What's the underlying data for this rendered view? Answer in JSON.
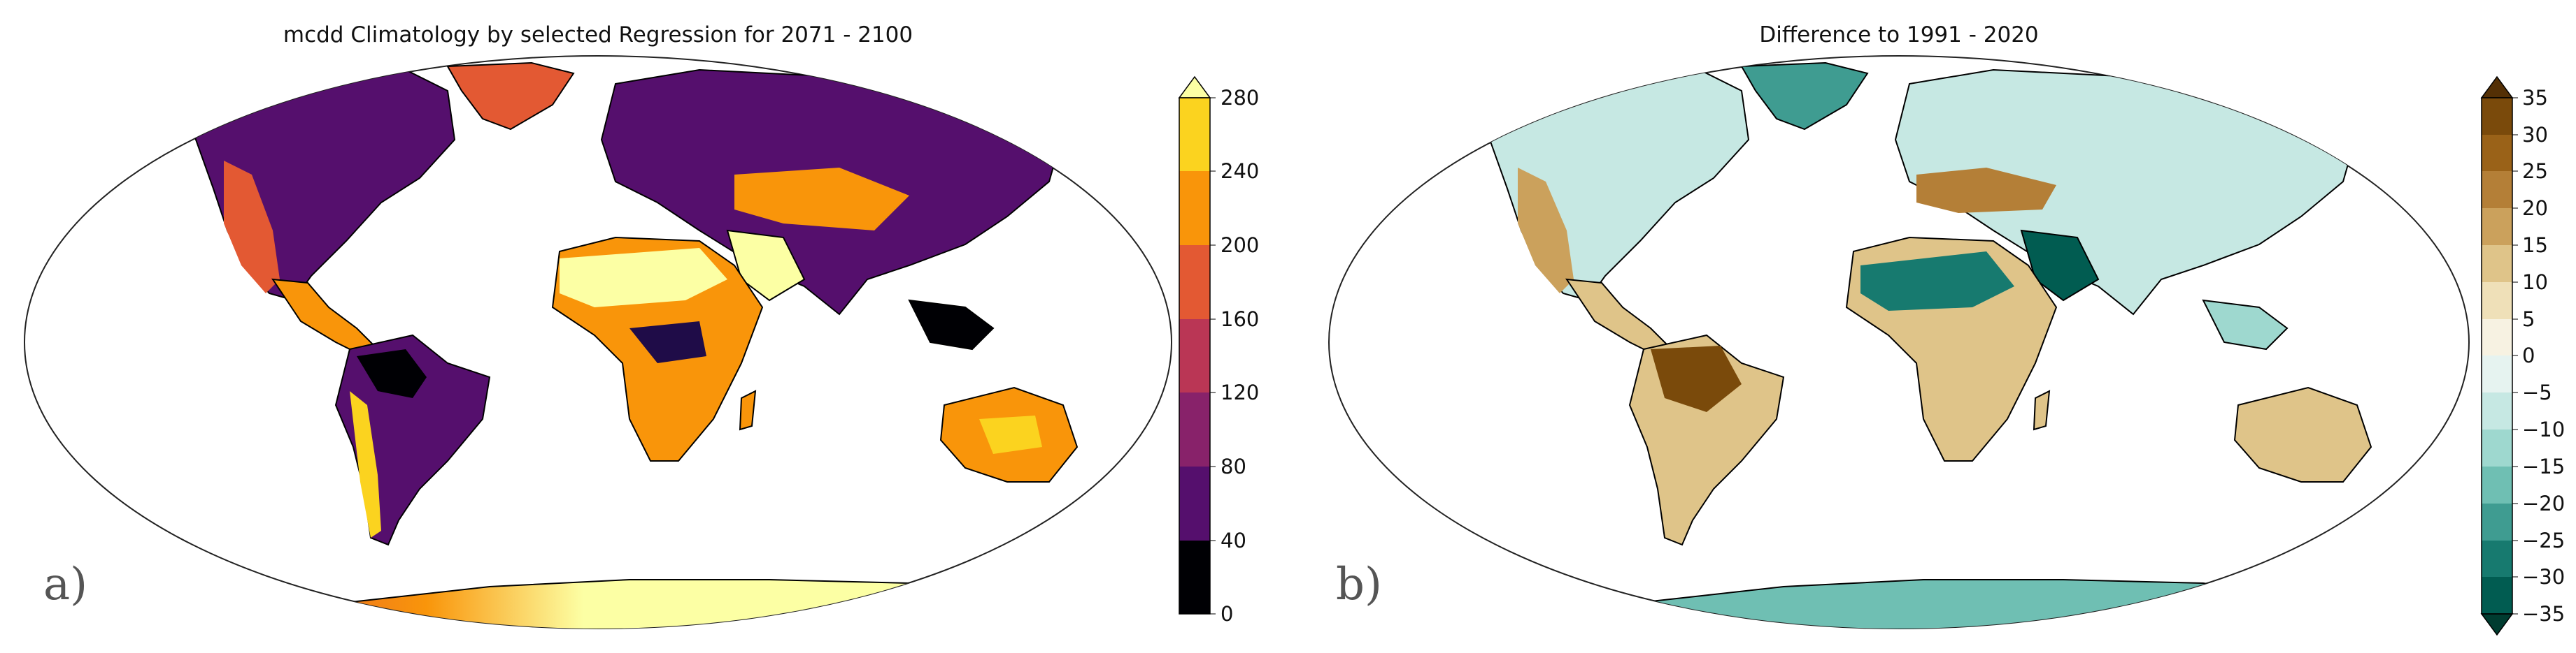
{
  "panels": [
    {
      "label": "a)",
      "title": "mcdd Climatology by selected Regression for 2071 - 2100",
      "colorbar": {
        "ticks": [
          "0",
          "40",
          "80",
          "120",
          "160",
          "200",
          "240",
          "280"
        ],
        "extend": "max",
        "colors": [
          "#000004",
          "#1f0c48",
          "#550f6d",
          "#88226a",
          "#ba3655",
          "#e35933",
          "#f9950a",
          "#fbd31f",
          "#fcffa4"
        ]
      }
    },
    {
      "label": "b)",
      "title": "Difference to 1991 - 2020",
      "colorbar": {
        "ticks": [
          "35",
          "30",
          "25",
          "20",
          "15",
          "10",
          "5",
          "0",
          "−5",
          "−10",
          "−15",
          "−20",
          "−25",
          "−30",
          "−35"
        ],
        "extend": "both",
        "colors": [
          "#543005",
          "#7a4a0b",
          "#9a6218",
          "#b47f37",
          "#cba15c",
          "#dfc489",
          "#efe0b8",
          "#f7f2e2",
          "#e6f3f0",
          "#c6e8e3",
          "#9ed8cf",
          "#6fbfb3",
          "#3f9c91",
          "#177a6f",
          "#015c51",
          "#003c30"
        ]
      }
    }
  ]
}
